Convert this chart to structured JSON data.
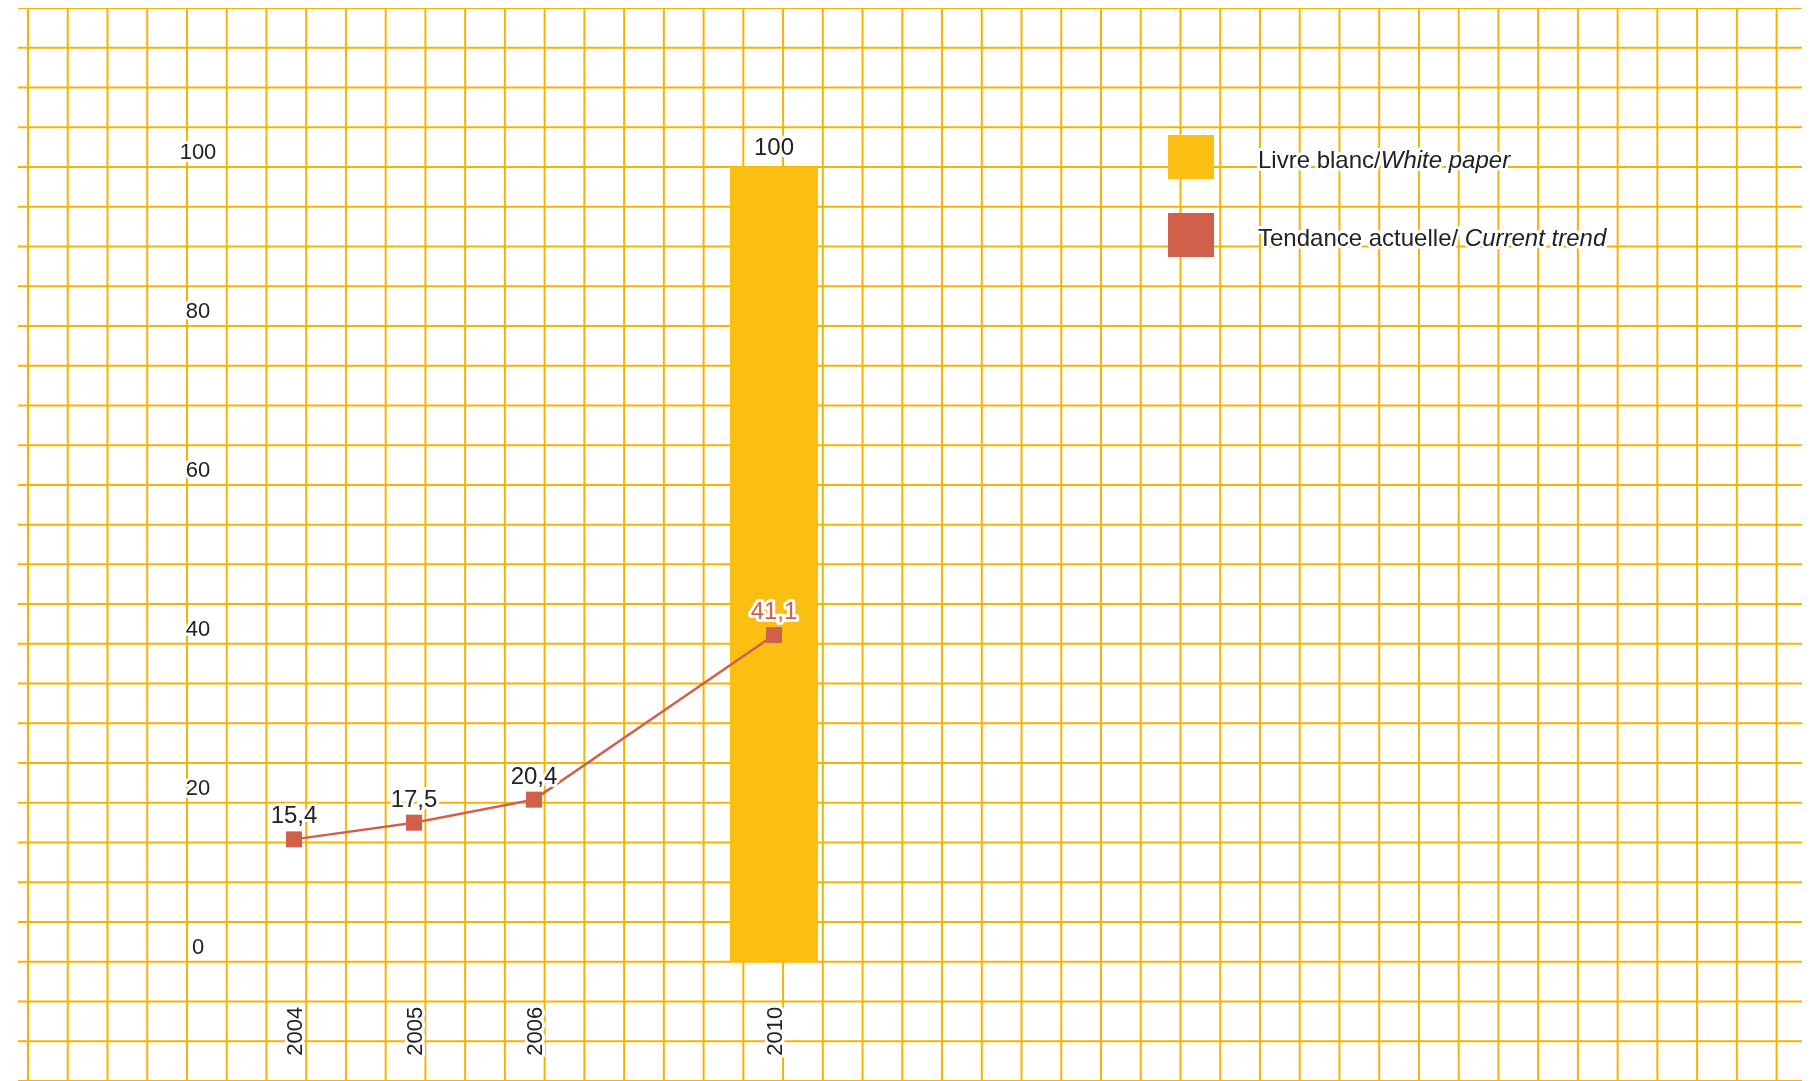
{
  "chart_data": {
    "type": "bar",
    "categories": [
      "2004",
      "2005",
      "2006",
      null,
      "2010"
    ],
    "series": [
      {
        "name": "Livre blanc/White paper",
        "color": "#fbbf14",
        "values": [
          null,
          null,
          null,
          null,
          100
        ],
        "value_labels": [
          null,
          null,
          null,
          null,
          "100"
        ]
      },
      {
        "name": "Tendance actuelle/ Current trend",
        "type": "line",
        "color": "#d0604a",
        "values": [
          15.4,
          17.5,
          20.4,
          null,
          41.1
        ],
        "value_labels": [
          "15,4",
          "17,5",
          "20,4",
          null,
          "41,1"
        ],
        "marker": "square",
        "line_style": "solid"
      }
    ],
    "ylim": [
      -15,
      120
    ],
    "yticks": [
      {
        "value": -15,
        "label": null
      },
      {
        "value": -10,
        "label": null
      },
      {
        "value": -5,
        "label": null
      },
      0,
      {
        "value": 5,
        "label": null
      },
      {
        "value": 10,
        "label": null
      },
      {
        "value": 15,
        "label": null
      },
      20,
      {
        "value": 25,
        "label": null
      },
      {
        "value": 30,
        "label": null
      },
      {
        "value": 35,
        "label": null
      },
      40,
      {
        "value": 45,
        "label": null
      },
      {
        "value": 50,
        "label": null
      },
      {
        "value": 55,
        "label": null
      },
      60,
      {
        "value": 65,
        "label": null
      },
      {
        "value": 70,
        "label": null
      },
      {
        "value": 75,
        "label": null
      },
      80,
      {
        "value": 85,
        "label": null
      },
      {
        "value": 90,
        "label": null
      },
      {
        "value": 95,
        "label": null
      },
      100,
      {
        "value": 105,
        "label": null
      },
      {
        "value": 110,
        "label": null
      },
      {
        "value": 115,
        "label": null
      },
      {
        "value": 120,
        "label": null
      }
    ],
    "grid": true,
    "legend": "top right"
  }
}
